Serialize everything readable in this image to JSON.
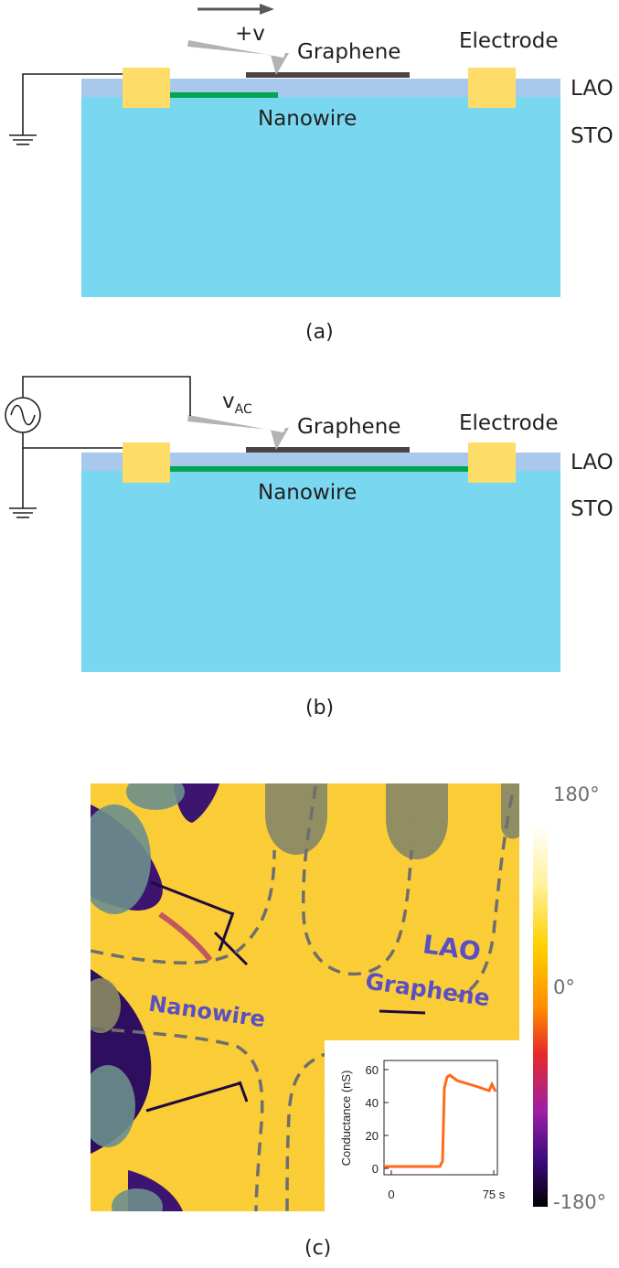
{
  "panel_a": {
    "caption": "(a)",
    "tip_voltage": "+v",
    "graphene_label": "Graphene",
    "electrode_label": "Electrode",
    "lao_label": "LAO",
    "sto_label": "STO",
    "nanowire_label": "Nanowire"
  },
  "panel_b": {
    "caption": "(b)",
    "tip_voltage_main": "v",
    "tip_voltage_sub": "AC",
    "graphene_label": "Graphene",
    "electrode_label": "Electrode",
    "lao_label": "LAO",
    "sto_label": "STO",
    "nanowire_label": "Nanowire"
  },
  "panel_c": {
    "caption": "(c)",
    "labels": {
      "lao": "LAO",
      "graphene": "Graphene",
      "nanowire": "Nanowire"
    },
    "colorbar": {
      "max": "180°",
      "mid": "0°",
      "min": "-180°"
    },
    "inset": {
      "ylabel": "Conductance (nS)",
      "yticks": [
        "0",
        "20",
        "40",
        "60"
      ],
      "xticks": [
        "0",
        "75 s"
      ],
      "line_color": "#ff6a1a"
    }
  },
  "colors": {
    "sto": "#7ad7f0",
    "lao": "#a9c9ec",
    "electrode": "#fddc67",
    "nanowire": "#00a651",
    "graphene": "#4d4342",
    "tip": "#b3b3b3",
    "map_label": "#5b4fc4"
  }
}
